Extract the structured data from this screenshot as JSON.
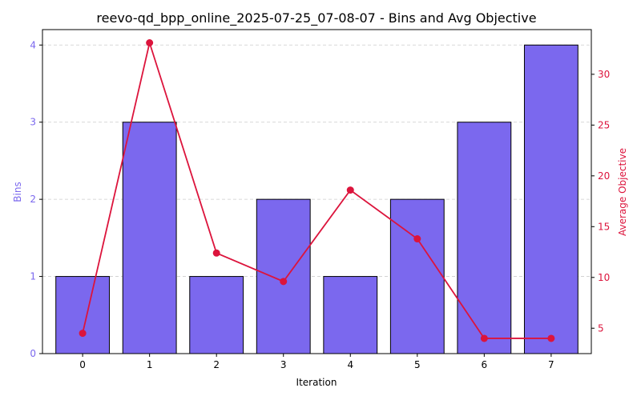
{
  "chart_data": {
    "type": "bar+line",
    "title": "reevo-qd_bpp_online_2025-07-25_07-08-07 - Bins and Avg Objective",
    "xlabel": "Iteration",
    "categories": [
      "0",
      "1",
      "2",
      "3",
      "4",
      "5",
      "6",
      "7"
    ],
    "series": [
      {
        "type": "bar",
        "axis": "left",
        "values": [
          1,
          3,
          1,
          2,
          1,
          2,
          3,
          4
        ]
      },
      {
        "type": "line",
        "axis": "right",
        "values": [
          4.5,
          33.1,
          12.4,
          9.6,
          18.6,
          13.8,
          4.0,
          4.0
        ]
      }
    ],
    "y_left": {
      "label": "Bins",
      "range": [
        0,
        4.2
      ],
      "ticks": [
        "0",
        "1",
        "2",
        "3",
        "4"
      ],
      "color": "#7b68ee"
    },
    "y_right": {
      "label": "Average Objective",
      "range": [
        2.5,
        34.4
      ],
      "ticks": [
        "5",
        "10",
        "15",
        "20",
        "25",
        "30"
      ],
      "color": "#dc143c"
    },
    "grid": "horizontal-dashed",
    "legend": "none"
  }
}
